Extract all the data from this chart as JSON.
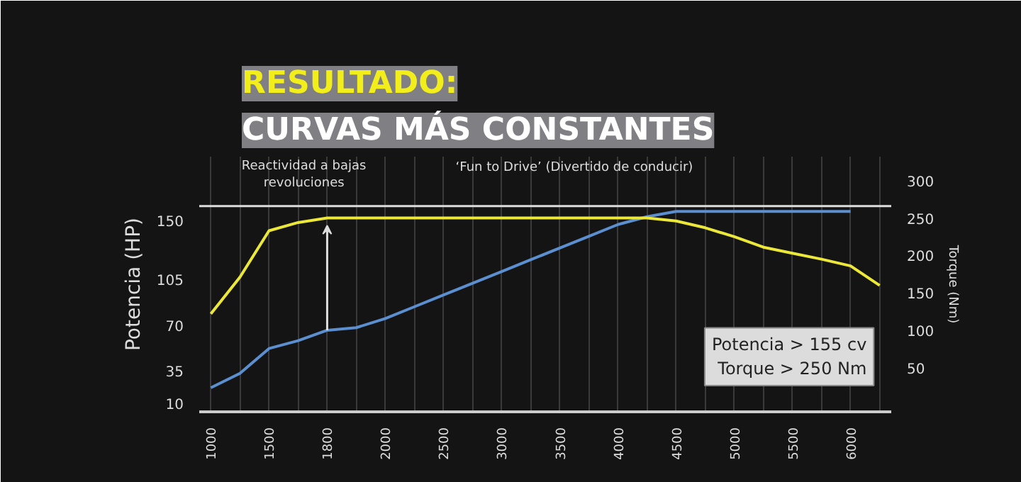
{
  "chart_data": {
    "type": "line",
    "title": "RESULTADO:",
    "subtitle": "CURVAS MÁS CONSTANTES",
    "categories": [
      "1000",
      null,
      "1500",
      null,
      "1800",
      null,
      "2000",
      null,
      "2500",
      null,
      "3000",
      null,
      "3500",
      null,
      "4000",
      null,
      "4500",
      null,
      "5000",
      null,
      "5500",
      null,
      "6000",
      null
    ],
    "series": [
      {
        "color": "#5b8fd0",
        "values": [
          22,
          33,
          52,
          58,
          66,
          68,
          75,
          84,
          93,
          102,
          111,
          120,
          129,
          138,
          147,
          153,
          157,
          157,
          157,
          157,
          157,
          157,
          157,
          null
        ]
      },
      {
        "color": "#ece83a",
        "axis": "y2",
        "values": [
          122,
          171,
          233,
          244,
          250,
          250,
          250,
          250,
          250,
          250,
          250,
          250,
          250,
          250,
          250,
          250,
          246,
          237,
          225,
          211,
          203,
          195,
          186,
          160
        ]
      }
    ],
    "ylabel": "Potencia (HP)",
    "y2label": "Torque (Nm)",
    "ylim": [
      3.5,
      199
    ],
    "yticks": [
      10,
      35,
      70,
      105,
      150
    ],
    "y2lim": [
      -9,
      332
    ],
    "y2ticks": [
      50,
      100,
      150,
      200,
      250,
      300
    ],
    "grid": "x",
    "ref_lines": [
      {
        "axis": "y2",
        "value": 266,
        "color": "#dddddd"
      }
    ],
    "annotations": [
      "Reactividad a bajas\nrevoluciones",
      "‘Fun to Drive’ (Divertido de conducir)",
      "Potencia > 155 cv\nTorque > 250 Nm"
    ]
  }
}
